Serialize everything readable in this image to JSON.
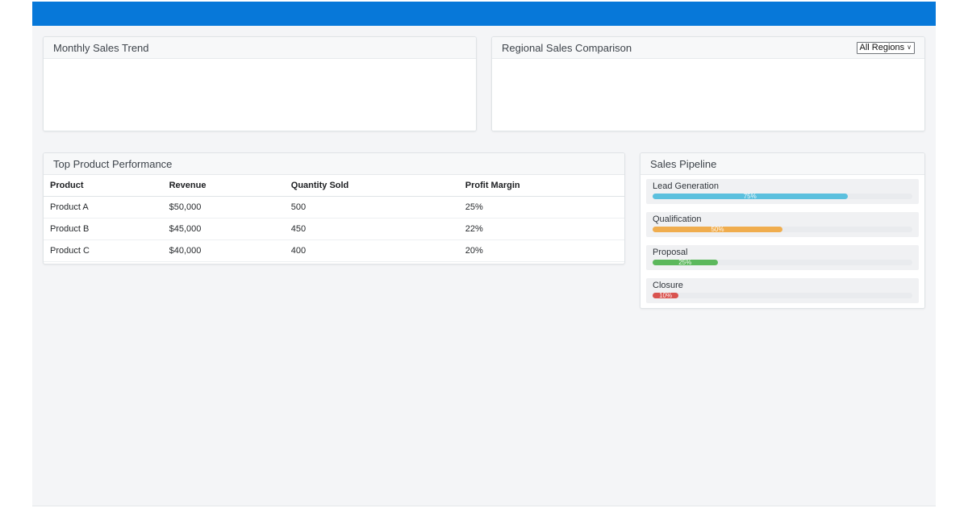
{
  "page": {
    "header_color": "#0778d9",
    "content_bg": "#f4f5f7"
  },
  "icons": {
    "chevron_down": "∨"
  },
  "cards": {
    "monthly_sales": {
      "title": "Monthly Sales Trend"
    },
    "regional_sales": {
      "title": "Regional Sales Comparison",
      "filter": {
        "selected": "All Regions"
      }
    },
    "product_table": {
      "title": "Top Product Performance",
      "columns": [
        "Product",
        "Revenue",
        "Quantity Sold",
        "Profit Margin"
      ],
      "rows": [
        [
          "Product A",
          "$50,000",
          "500",
          "25%"
        ],
        [
          "Product B",
          "$45,000",
          "450",
          "22%"
        ],
        [
          "Product C",
          "$40,000",
          "400",
          "20%"
        ]
      ]
    },
    "pipeline": {
      "title": "Sales Pipeline",
      "stages": [
        {
          "label": "Lead Generation",
          "percent": 75,
          "percent_label": "75%",
          "color": "#5bc0de"
        },
        {
          "label": "Qualification",
          "percent": 50,
          "percent_label": "50%",
          "color": "#f0ad4e"
        },
        {
          "label": "Proposal",
          "percent": 25,
          "percent_label": "25%",
          "color": "#5cb85c"
        },
        {
          "label": "Closure",
          "percent": 10,
          "percent_label": "10%",
          "color": "#d9534f"
        }
      ]
    }
  }
}
